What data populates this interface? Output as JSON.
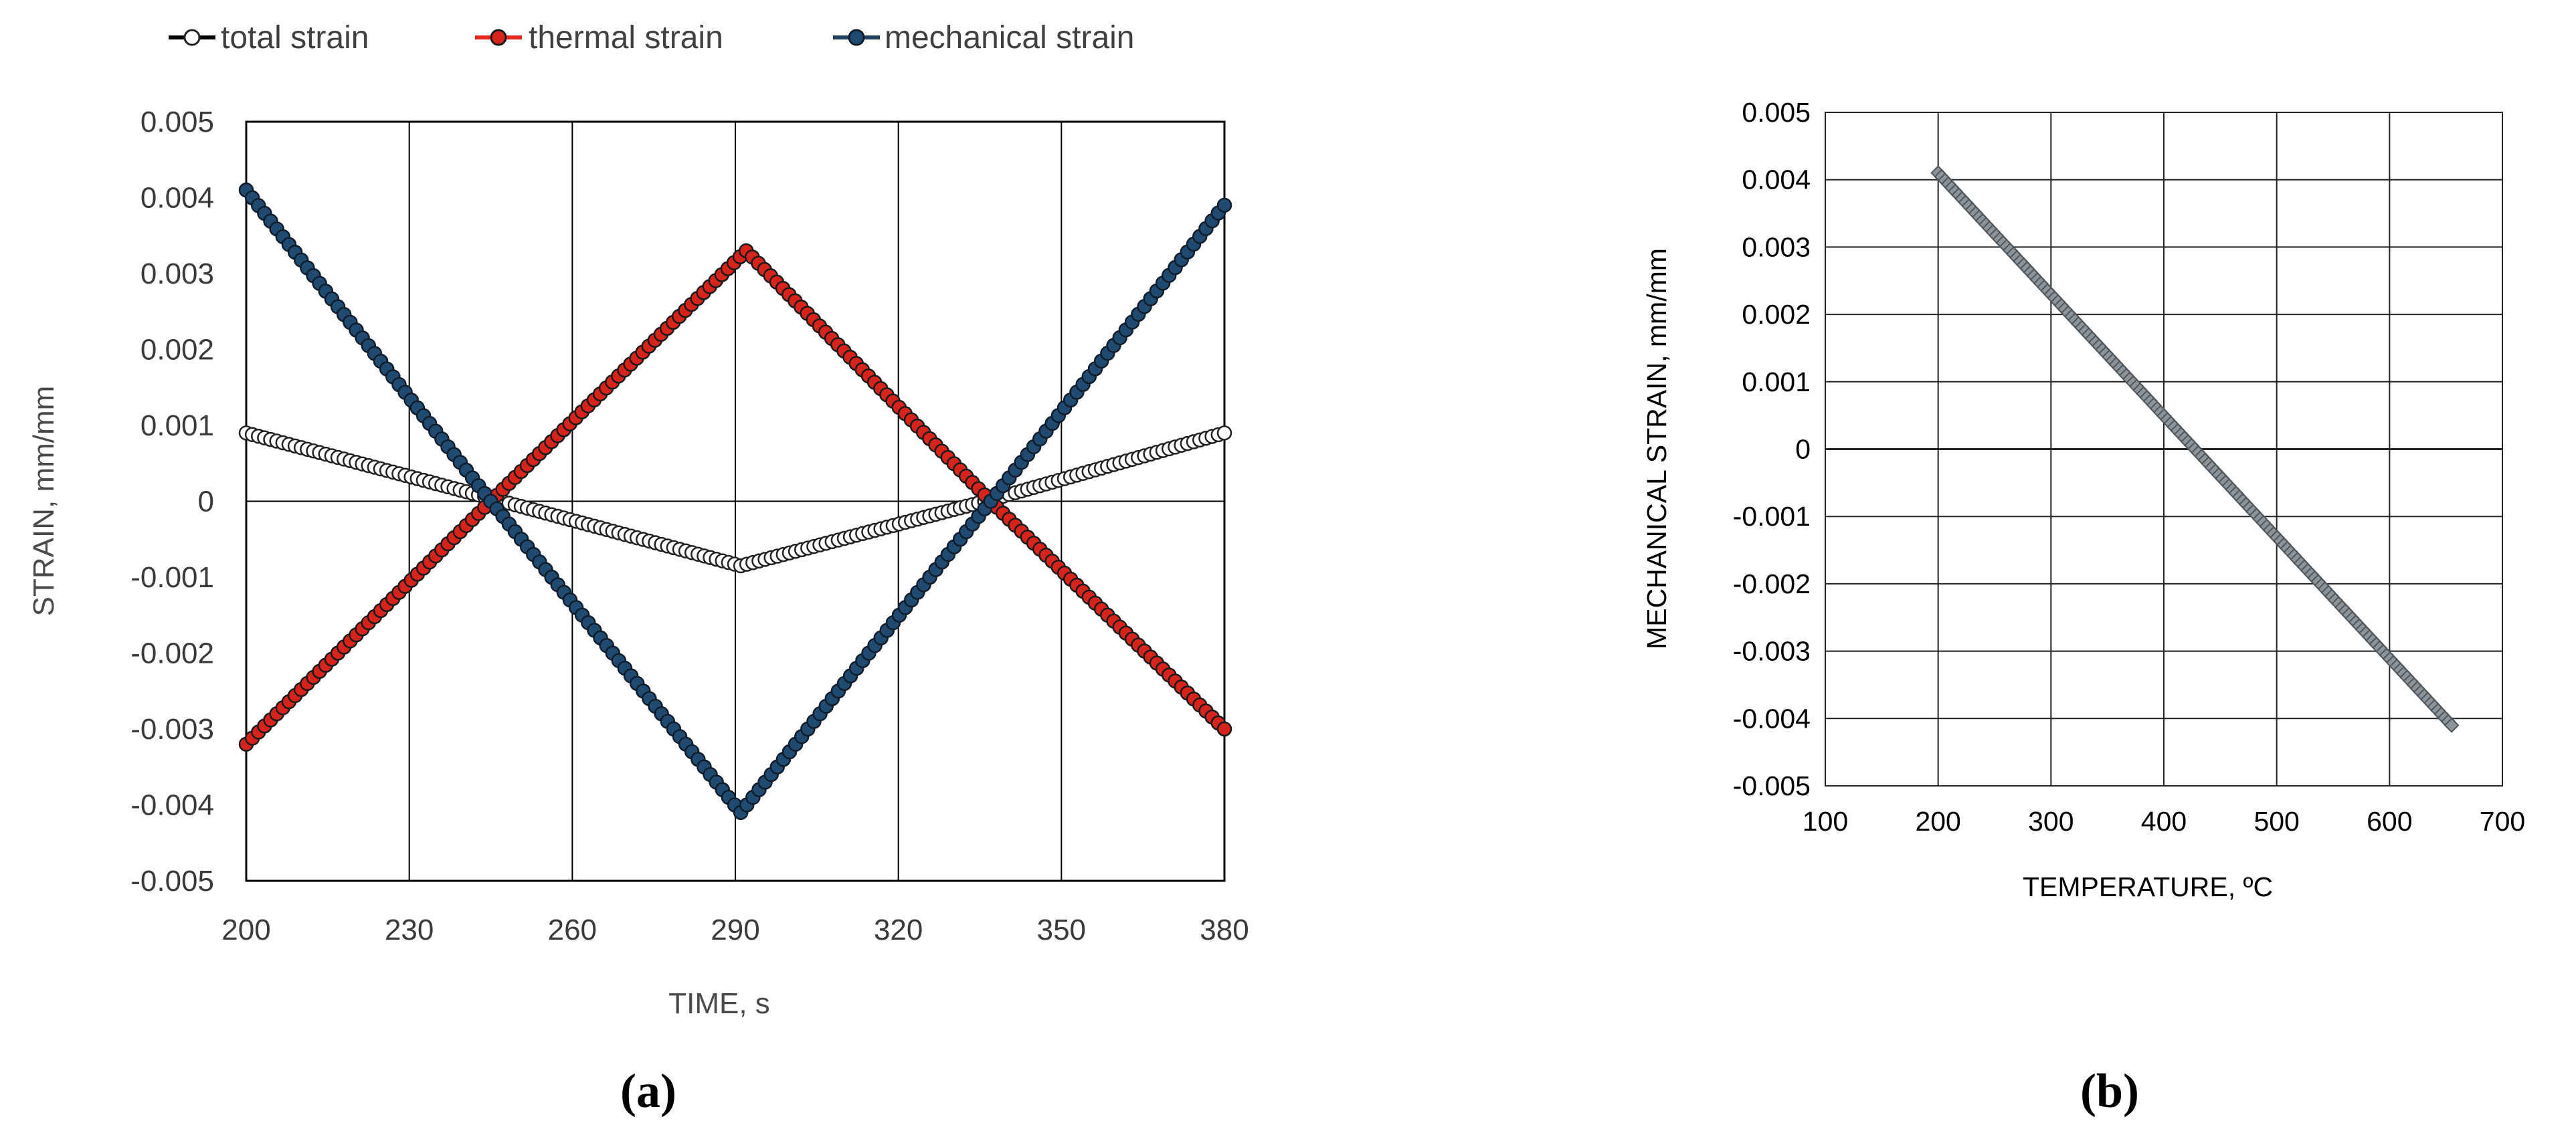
{
  "chart_data": [
    {
      "panel_label": "(a)",
      "type": "line",
      "title": "",
      "xlabel": "TIME, s",
      "ylabel": "STRAIN, mm/mm",
      "xlim": [
        200,
        380
      ],
      "ylim": [
        -0.005,
        0.005
      ],
      "x_ticks": [
        "200",
        "230",
        "260",
        "290",
        "320",
        "350",
        "380"
      ],
      "y_ticks": [
        "0.005",
        "0.004",
        "0.003",
        "0.002",
        "0.001",
        "0",
        "-0.001",
        "-0.002",
        "-0.003",
        "-0.004",
        "-0.005"
      ],
      "grid": "vertical",
      "legend_position": "top",
      "series": [
        {
          "name": "total strain",
          "marker": "open-circle",
          "line_color": "#000000",
          "fill_color": "#ffffff",
          "edge_color": "#222222",
          "points": [
            [
              200,
              0.0009
            ],
            [
              245,
              4e-05
            ],
            [
              291,
              -0.00085
            ],
            [
              337,
              2e-05
            ],
            [
              380,
              0.0009
            ]
          ]
        },
        {
          "name": "thermal strain",
          "marker": "circle",
          "line_color": "#e8261f",
          "fill_color": "#d6241c",
          "edge_color": "#1a1a1a",
          "points": [
            [
              200,
              -0.0032
            ],
            [
              245,
              0.0
            ],
            [
              292,
              0.0033
            ],
            [
              337,
              0.0
            ],
            [
              380,
              -0.003
            ]
          ]
        },
        {
          "name": "mechanical strain",
          "marker": "circle",
          "line_color": "#1f3f60",
          "fill_color": "#204a70",
          "edge_color": "#0f1d2c",
          "points": [
            [
              200,
              0.0041
            ],
            [
              245,
              0.0
            ],
            [
              291,
              -0.0041
            ],
            [
              337,
              0.0
            ],
            [
              380,
              0.0039
            ]
          ]
        }
      ]
    },
    {
      "panel_label": "(b)",
      "type": "scatter",
      "title": "",
      "xlabel": "TEMPERATURE, ºC",
      "ylabel": "MECHANICAL STRAIN, mm/mm",
      "xlim": [
        100,
        700
      ],
      "ylim": [
        -0.005,
        0.005
      ],
      "x_ticks": [
        "100",
        "200",
        "300",
        "400",
        "500",
        "600",
        "700"
      ],
      "y_ticks": [
        "0.005",
        "0.004",
        "0.003",
        "0.002",
        "0.001",
        "0",
        "-0.001",
        "-0.002",
        "-0.003",
        "-0.004",
        "-0.005"
      ],
      "grid": "both",
      "series": [
        {
          "marker": "diamond",
          "fill_color": "#8d9499",
          "edge_color": "#4f565c",
          "points": [
            [
              200,
              0.0041
            ],
            [
              655,
              -0.0041
            ]
          ]
        }
      ]
    }
  ]
}
